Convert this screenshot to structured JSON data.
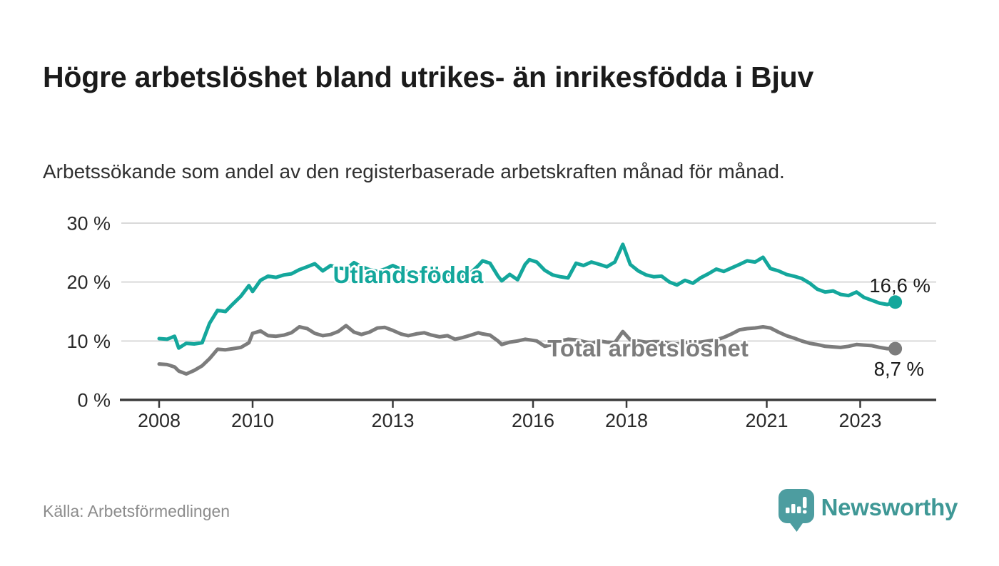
{
  "page": {
    "title": "Högre arbetslöshet bland utrikes- än inrikesfödda i Bjuv",
    "subtitle": "Arbetssökande som andel av den registerbaserade arbetskraften månad för månad.",
    "source": "Källa: Arbetsförmedlingen",
    "brand": {
      "name": "Newsworthy",
      "icon": "newsworthy-speech-bubble-bar-chart-icon",
      "wordmark_color": "#3f9896",
      "icon_color": "#4d9da0"
    },
    "colors": {
      "title_text": "#1b1b1b",
      "axis_text": "#2a2a2a",
      "axis_line": "#3b3b3b",
      "gridline": "#d9d9d9",
      "annotation_text": "#1b1b1b",
      "background": "#ffffff"
    }
  },
  "chart_data": {
    "type": "line",
    "title": "Högre arbetslöshet bland utrikes- än inrikesfödda i Bjuv",
    "subtitle": "Arbetssökande som andel av den registerbaserade arbetskraften månad för månad.",
    "xlabel": "",
    "ylabel": "",
    "grid": "horizontal",
    "legend_position": "inline-on-line",
    "ylim": [
      0,
      30
    ],
    "xlim": [
      2007.2,
      2024.6
    ],
    "xticks": {
      "values": [
        2008,
        2010,
        2013,
        2016,
        2018,
        2021,
        2023
      ],
      "labels": [
        "2008",
        "2010",
        "2013",
        "2016",
        "2018",
        "2021",
        "2023"
      ]
    },
    "yticks": {
      "values": [
        0,
        10,
        20,
        30
      ],
      "labels": [
        "0 %",
        "10 %",
        "20 %",
        "30 %"
      ]
    },
    "x_years": [
      2008.0,
      2008.17,
      2008.33,
      2008.42,
      2008.58,
      2008.75,
      2008.92,
      2009.08,
      2009.25,
      2009.42,
      2009.58,
      2009.75,
      2009.92,
      2010.0,
      2010.17,
      2010.33,
      2010.5,
      2010.67,
      2010.83,
      2011.0,
      2011.17,
      2011.33,
      2011.5,
      2011.67,
      2011.83,
      2012.0,
      2012.17,
      2012.33,
      2012.5,
      2012.67,
      2012.83,
      2013.0,
      2013.17,
      2013.33,
      2013.5,
      2013.67,
      2013.83,
      2014.0,
      2014.17,
      2014.33,
      2014.5,
      2014.67,
      2014.83,
      2014.92,
      2015.08,
      2015.25,
      2015.33,
      2015.5,
      2015.67,
      2015.83,
      2015.92,
      2016.08,
      2016.25,
      2016.42,
      2016.58,
      2016.75,
      2016.92,
      2017.08,
      2017.25,
      2017.42,
      2017.58,
      2017.75,
      2017.92,
      2018.08,
      2018.25,
      2018.42,
      2018.58,
      2018.75,
      2018.92,
      2019.08,
      2019.25,
      2019.42,
      2019.58,
      2019.75,
      2019.92,
      2020.08,
      2020.25,
      2020.42,
      2020.58,
      2020.75,
      2020.92,
      2021.08,
      2021.25,
      2021.42,
      2021.58,
      2021.75,
      2021.92,
      2022.08,
      2022.25,
      2022.42,
      2022.58,
      2022.75,
      2022.92,
      2023.08,
      2023.25,
      2023.42,
      2023.58,
      2023.75
    ],
    "series": [
      {
        "name": "Utlandsfödda",
        "color": "#14a79c",
        "end_label": "16,6 %",
        "last_value": 16.6,
        "values": [
          10.4,
          10.3,
          10.8,
          8.8,
          9.6,
          9.5,
          9.7,
          13.0,
          15.2,
          15.0,
          16.3,
          17.6,
          19.4,
          18.4,
          20.3,
          21.0,
          20.8,
          21.2,
          21.4,
          22.1,
          22.6,
          23.1,
          21.9,
          22.8,
          22.4,
          22.2,
          23.3,
          22.6,
          22.1,
          21.8,
          22.2,
          22.8,
          22.2,
          21.7,
          21.3,
          21.6,
          21.2,
          21.0,
          21.4,
          20.8,
          21.0,
          21.6,
          22.8,
          23.6,
          23.2,
          21.0,
          20.2,
          21.3,
          20.4,
          23.0,
          23.8,
          23.4,
          22.0,
          21.2,
          20.9,
          20.7,
          23.2,
          22.8,
          23.4,
          23.0,
          22.6,
          23.4,
          26.4,
          23.0,
          21.9,
          21.2,
          20.9,
          21.0,
          20.0,
          19.5,
          20.3,
          19.8,
          20.7,
          21.4,
          22.2,
          21.8,
          22.4,
          23.0,
          23.6,
          23.4,
          24.2,
          22.3,
          21.9,
          21.3,
          21.0,
          20.6,
          19.8,
          18.8,
          18.3,
          18.5,
          17.9,
          17.7,
          18.3,
          17.4,
          16.9,
          16.4,
          16.2,
          16.6
        ]
      },
      {
        "name": "Total arbetslöshet",
        "color": "#7c7c7c",
        "end_label": "8,7 %",
        "last_value": 8.7,
        "values": [
          6.1,
          6.0,
          5.6,
          4.9,
          4.4,
          5.0,
          5.8,
          7.0,
          8.6,
          8.5,
          8.7,
          8.9,
          9.7,
          11.3,
          11.7,
          10.9,
          10.8,
          11.0,
          11.4,
          12.4,
          12.1,
          11.3,
          10.9,
          11.1,
          11.6,
          12.6,
          11.5,
          11.1,
          11.5,
          12.2,
          12.3,
          11.8,
          11.2,
          10.9,
          11.2,
          11.4,
          11.0,
          10.7,
          10.9,
          10.3,
          10.6,
          11.0,
          11.4,
          11.2,
          11.0,
          10.0,
          9.4,
          9.8,
          10.0,
          10.3,
          10.2,
          10.0,
          9.1,
          9.4,
          10.0,
          10.3,
          10.2,
          9.9,
          9.6,
          10.0,
          9.8,
          9.7,
          11.6,
          10.2,
          10.0,
          9.8,
          9.9,
          9.9,
          9.6,
          9.5,
          9.7,
          9.9,
          9.8,
          10.0,
          10.2,
          10.6,
          11.2,
          11.9,
          12.1,
          12.2,
          12.4,
          12.2,
          11.5,
          10.9,
          10.5,
          10.0,
          9.6,
          9.4,
          9.1,
          9.0,
          8.9,
          9.1,
          9.4,
          9.3,
          9.2,
          8.9,
          8.7,
          8.7
        ]
      }
    ]
  }
}
